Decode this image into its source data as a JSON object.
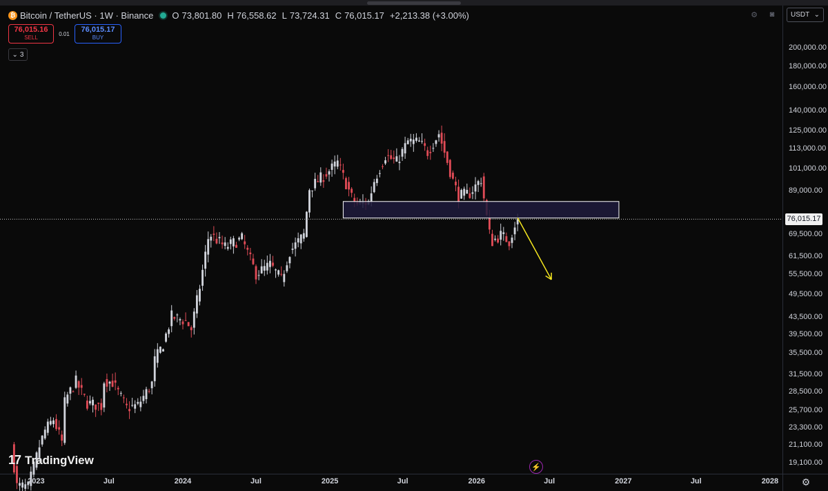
{
  "legend": {
    "symbol": "Bitcoin / TetherUS · 1W · Binance",
    "open": "73,801.80",
    "high": "76,558.62",
    "low": "73,724.31",
    "close": "76,015.17",
    "change": "+2,213.38 (+3.00%)"
  },
  "trade": {
    "sell_price": "76,015.16",
    "sell_label": "SELL",
    "spread": "0.01",
    "buy_price": "76,015.17",
    "buy_label": "BUY"
  },
  "indicators_toggle": "3",
  "currency": "USDT",
  "price_tag": "76,015.17",
  "watermark": "TradingView",
  "colors": {
    "up": "#d1d4dc",
    "down": "#e04b56",
    "zone": "#1e1b3c",
    "arrow": "#f5e61f",
    "accent_buy": "#2962ff",
    "accent_sell": "#f23645"
  },
  "chart_data": {
    "type": "candlestick",
    "scale": "log",
    "ylim": [
      18000,
      230000
    ],
    "y_ticks": [
      {
        "v": 200000,
        "label": "200,000.00"
      },
      {
        "v": 180000,
        "label": "180,000.00"
      },
      {
        "v": 160000,
        "label": "160,000.00"
      },
      {
        "v": 140000,
        "label": "140,000.00"
      },
      {
        "v": 125000,
        "label": "125,000.00"
      },
      {
        "v": 113000,
        "label": "113,000.00"
      },
      {
        "v": 101000,
        "label": "101,000.00"
      },
      {
        "v": 89000,
        "label": "89,000.00"
      },
      {
        "v": 69500,
        "label": "69,500.00"
      },
      {
        "v": 61500,
        "label": "61,500.00"
      },
      {
        "v": 55500,
        "label": "55,500.00"
      },
      {
        "v": 49500,
        "label": "49,500.00"
      },
      {
        "v": 43500,
        "label": "43,500.00"
      },
      {
        "v": 39500,
        "label": "39,500.00"
      },
      {
        "v": 35500,
        "label": "35,500.00"
      },
      {
        "v": 31500,
        "label": "31,500.00"
      },
      {
        "v": 28500,
        "label": "28,500.00"
      },
      {
        "v": 25700,
        "label": "25,700.00"
      },
      {
        "v": 23300,
        "label": "23,300.00"
      },
      {
        "v": 21100,
        "label": "21,100.00"
      },
      {
        "v": 19100,
        "label": "19,100.00"
      }
    ],
    "x_ticks": [
      {
        "date": "2023-01-01",
        "label": "2023"
      },
      {
        "date": "2023-07-01",
        "label": "Jul"
      },
      {
        "date": "2024-01-01",
        "label": "2024"
      },
      {
        "date": "2024-07-01",
        "label": "Jul"
      },
      {
        "date": "2025-01-01",
        "label": "2025"
      },
      {
        "date": "2025-07-01",
        "label": "Jul"
      },
      {
        "date": "2026-01-01",
        "label": "2026"
      },
      {
        "date": "2026-07-01",
        "label": "Jul"
      },
      {
        "date": "2027-01-01",
        "label": "2027"
      },
      {
        "date": "2027-07-01",
        "label": "Jul"
      },
      {
        "date": "2028-01-01",
        "label": "2028"
      }
    ],
    "x_range": [
      "2022-10-03",
      "2028-02-01"
    ],
    "last_price": 76015.17,
    "zone": {
      "from": "2025-02-03",
      "to": "2026-12-21",
      "low": 76500,
      "high": 84000
    },
    "projection_arrow": {
      "start": {
        "date": "2026-04-13",
        "price": 76600
      },
      "end": {
        "date": "2026-07-06",
        "price": 54000
      }
    },
    "closes": [
      {
        "date": "2022-10-31",
        "price": 21000
      },
      {
        "date": "2022-11-14",
        "price": 16800
      },
      {
        "date": "2022-12-12",
        "price": 16700
      },
      {
        "date": "2023-01-09",
        "price": 21000
      },
      {
        "date": "2023-01-23",
        "price": 23000
      },
      {
        "date": "2023-02-13",
        "price": 24500
      },
      {
        "date": "2023-03-06",
        "price": 21500
      },
      {
        "date": "2023-03-13",
        "price": 26900
      },
      {
        "date": "2023-03-20",
        "price": 28000
      },
      {
        "date": "2023-04-10",
        "price": 30300
      },
      {
        "date": "2023-05-08",
        "price": 26800
      },
      {
        "date": "2023-06-12",
        "price": 26400
      },
      {
        "date": "2023-06-19",
        "price": 30500
      },
      {
        "date": "2023-07-10",
        "price": 30200
      },
      {
        "date": "2023-08-14",
        "price": 26100
      },
      {
        "date": "2023-09-11",
        "price": 26500
      },
      {
        "date": "2023-10-16",
        "price": 30000
      },
      {
        "date": "2023-10-23",
        "price": 34200
      },
      {
        "date": "2023-11-13",
        "price": 37500
      },
      {
        "date": "2023-12-04",
        "price": 43800
      },
      {
        "date": "2024-01-08",
        "price": 42700
      },
      {
        "date": "2024-01-22",
        "price": 40800
      },
      {
        "date": "2024-02-12",
        "price": 51800
      },
      {
        "date": "2024-03-04",
        "price": 68200
      },
      {
        "date": "2024-03-11",
        "price": 69500
      },
      {
        "date": "2024-04-15",
        "price": 64900
      },
      {
        "date": "2024-05-27",
        "price": 68000
      },
      {
        "date": "2024-07-01",
        "price": 55800
      },
      {
        "date": "2024-08-05",
        "price": 58700
      },
      {
        "date": "2024-09-02",
        "price": 54000
      },
      {
        "date": "2024-09-23",
        "price": 63300
      },
      {
        "date": "2024-10-28",
        "price": 69500
      },
      {
        "date": "2024-11-11",
        "price": 90500
      },
      {
        "date": "2024-12-16",
        "price": 97000
      },
      {
        "date": "2025-01-20",
        "price": 104500
      },
      {
        "date": "2025-02-24",
        "price": 86000
      },
      {
        "date": "2025-03-10",
        "price": 82700
      },
      {
        "date": "2025-04-07",
        "price": 83800
      },
      {
        "date": "2025-04-21",
        "price": 94500
      },
      {
        "date": "2025-05-19",
        "price": 108900
      },
      {
        "date": "2025-06-16",
        "price": 105000
      },
      {
        "date": "2025-07-14",
        "price": 118000
      },
      {
        "date": "2025-08-11",
        "price": 117500
      },
      {
        "date": "2025-09-01",
        "price": 111000
      },
      {
        "date": "2025-09-29",
        "price": 123500
      },
      {
        "date": "2025-10-13",
        "price": 111000
      },
      {
        "date": "2025-11-03",
        "price": 94500
      },
      {
        "date": "2025-11-17",
        "price": 86500
      },
      {
        "date": "2025-12-15",
        "price": 88000
      },
      {
        "date": "2026-01-12",
        "price": 95400
      },
      {
        "date": "2026-01-26",
        "price": 77000
      },
      {
        "date": "2026-02-02",
        "price": 70000
      },
      {
        "date": "2026-02-09",
        "price": 67000
      },
      {
        "date": "2026-03-02",
        "price": 69500
      },
      {
        "date": "2026-03-23",
        "price": 67000
      },
      {
        "date": "2026-04-06",
        "price": 73800
      },
      {
        "date": "2026-04-13",
        "price": 76015.17
      }
    ]
  }
}
